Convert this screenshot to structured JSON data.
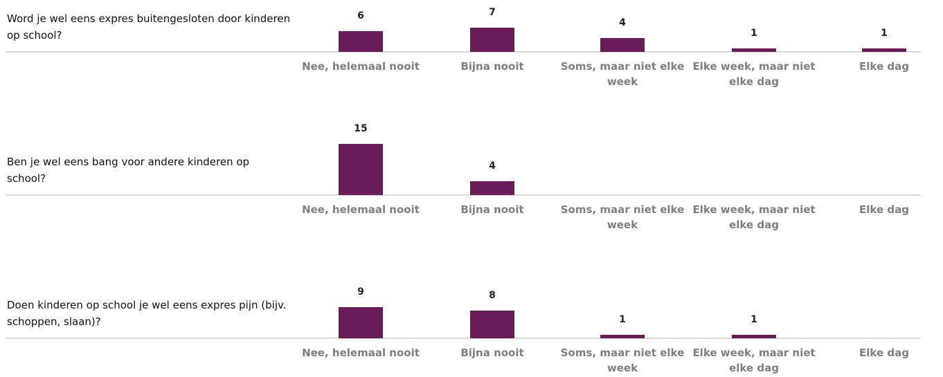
{
  "chart_data": [
    {
      "type": "bar",
      "title": "Word je wel eens expres buitengesloten door kinderen op school?",
      "categories": [
        "Nee, helemaal nooit",
        "Bijna nooit",
        "Soms, maar niet elke week",
        "Elke week, maar niet elke dag",
        "Elke dag"
      ],
      "values": [
        6,
        7,
        4,
        1,
        1
      ],
      "color": "#6a1b5a"
    },
    {
      "type": "bar",
      "title": "Ben je wel eens bang voor andere kinderen op school?",
      "categories": [
        "Nee, helemaal nooit",
        "Bijna nooit",
        "Soms, maar niet elke week",
        "Elke week, maar niet elke dag",
        "Elke dag"
      ],
      "values": [
        15,
        4,
        null,
        null,
        null
      ],
      "color": "#6a1b5a"
    },
    {
      "type": "bar",
      "title": "Doen kinderen op school je wel eens expres pijn (bijv. schoppen, slaan)?",
      "categories": [
        "Nee, helemaal nooit",
        "Bijna nooit",
        "Soms, maar niet elke week",
        "Elke week, maar niet elke dag",
        "Elke dag"
      ],
      "values": [
        9,
        8,
        1,
        1,
        null
      ],
      "color": "#6a1b5a"
    }
  ]
}
